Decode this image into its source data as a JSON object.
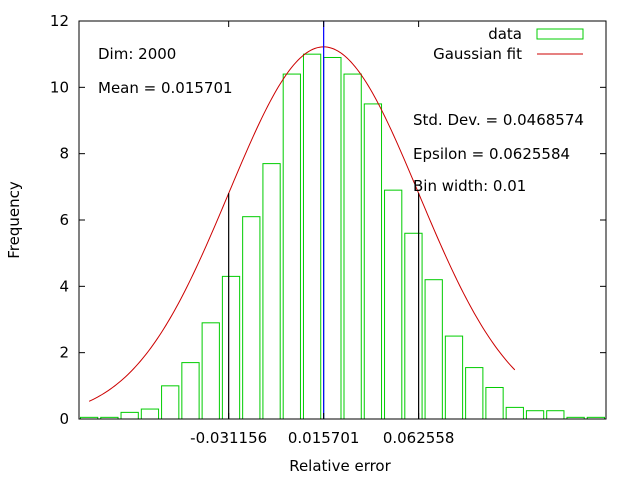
{
  "chart_data": {
    "type": "bar",
    "title": "",
    "xlabel": "Relative error",
    "ylabel": "Frequency",
    "ylim": [
      0,
      12
    ],
    "y_ticks": [
      "0",
      "2",
      "4",
      "6",
      "8",
      "10",
      "12"
    ],
    "x_ticks": [
      "-0.031156",
      "0.015701",
      "0.062558"
    ],
    "x_tick_values": [
      -0.031156,
      0.015701,
      0.062558
    ],
    "xlim": [
      -0.105,
      0.155
    ],
    "bin_width": 0.01,
    "bins": {
      "centers": [
        -0.1,
        -0.09,
        -0.08,
        -0.07,
        -0.06,
        -0.05,
        -0.04,
        -0.03,
        -0.02,
        -0.01,
        0.0,
        0.01,
        0.02,
        0.03,
        0.04,
        0.05,
        0.06,
        0.07,
        0.08,
        0.09,
        0.1,
        0.11,
        0.12,
        0.13,
        0.14,
        0.15
      ],
      "values": [
        0.05,
        0.05,
        0.2,
        0.3,
        1.0,
        1.7,
        2.9,
        4.3,
        6.1,
        7.7,
        10.4,
        11.0,
        10.9,
        10.4,
        9.5,
        6.9,
        5.6,
        4.2,
        2.5,
        1.55,
        0.95,
        0.35,
        0.25,
        0.25,
        0.05,
        0.05
      ]
    },
    "gaussian_fit": {
      "mean": 0.015701,
      "std_dev": 0.0468574,
      "peak": 11.22,
      "x_range": [
        -0.1,
        0.11
      ]
    },
    "vertical_lines": [
      {
        "x": 0.015701,
        "color": "#0000ff",
        "role": "mean"
      },
      {
        "x": -0.031156,
        "color": "#000000",
        "role": "mean - std dev"
      },
      {
        "x": 0.062558,
        "color": "#000000",
        "role": "mean + std dev"
      }
    ],
    "series": [
      {
        "name": "data",
        "color": "#00cc00",
        "style": "histogram"
      },
      {
        "name": "Gaussian fit",
        "color": "#cc0000",
        "style": "line"
      }
    ],
    "legend_placement": "top-right",
    "grid": false,
    "annotations": {
      "dim": "Dim: 2000",
      "mean": "Mean = 0.015701",
      "std_dev": "Std. Dev. = 0.0468574",
      "epsilon": "Epsilon = 0.0625584",
      "bin_width": "Bin width: 0.01"
    }
  }
}
